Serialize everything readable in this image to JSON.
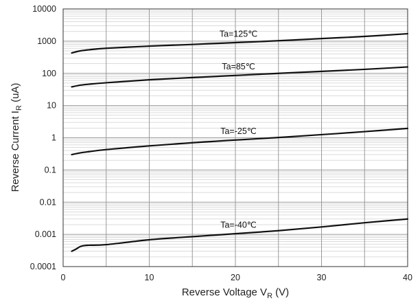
{
  "chart_data": {
    "type": "line",
    "title": "",
    "xlabel": {
      "main": "Reverse Voltage  V",
      "sub": "R",
      "unit": " (V)"
    },
    "ylabel": {
      "main": "Reverse Current  I",
      "sub": "R",
      "unit": " (uA)"
    },
    "x_scale": "linear",
    "y_scale": "log",
    "xlim": [
      0,
      40
    ],
    "ylim": [
      0.0001,
      10000
    ],
    "x_ticks": [
      0,
      10,
      20,
      30,
      40
    ],
    "x_tick_labels": [
      "0",
      "10",
      "20",
      "30",
      "40"
    ],
    "y_ticks": [
      0.0001,
      0.001,
      0.01,
      0.1,
      1,
      10,
      100,
      1000,
      10000
    ],
    "y_tick_labels": [
      "0.0001",
      "0.001",
      "0.01",
      "0.1",
      "1",
      "10",
      "100",
      "1000",
      "10000"
    ],
    "grid": {
      "major": true,
      "minor_y": true,
      "x_step": 5
    },
    "series": [
      {
        "name": "Ta=125℃",
        "x": [
          1,
          2,
          3,
          5,
          10,
          15,
          20,
          25,
          30,
          35,
          40
        ],
        "y": [
          430,
          500,
          540,
          600,
          700,
          790,
          900,
          1030,
          1200,
          1400,
          1700
        ]
      },
      {
        "name": "Ta=85℃",
        "x": [
          1,
          2,
          3,
          5,
          10,
          15,
          20,
          25,
          30,
          35,
          40
        ],
        "y": [
          38,
          43,
          46,
          51,
          63,
          74,
          86,
          100,
          115,
          133,
          158
        ]
      },
      {
        "name": "Ta=-25℃",
        "x": [
          1,
          2,
          3,
          5,
          10,
          15,
          20,
          25,
          30,
          35,
          40
        ],
        "y": [
          0.3,
          0.34,
          0.37,
          0.43,
          0.56,
          0.7,
          0.85,
          1.02,
          1.25,
          1.55,
          1.95
        ]
      },
      {
        "name": "Ta=-40℃",
        "x": [
          1,
          1.5,
          2,
          2.5,
          3,
          5,
          10,
          15,
          20,
          25,
          30,
          35,
          40
        ],
        "y": [
          0.0003,
          0.00035,
          0.00042,
          0.00045,
          0.00046,
          0.00048,
          0.00068,
          0.00085,
          0.00105,
          0.0013,
          0.0017,
          0.0023,
          0.003
        ]
      }
    ],
    "colors": {
      "curve": "#111111",
      "major_grid": "#9a9a9a",
      "minor_grid": "#cfcfcf",
      "frame": "#333333"
    }
  }
}
